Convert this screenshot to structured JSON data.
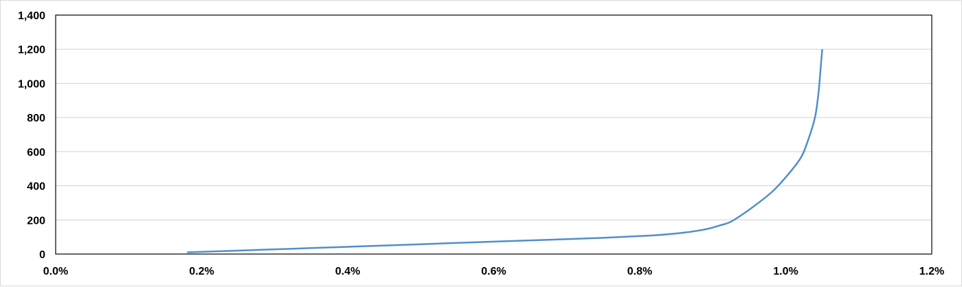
{
  "chart_data": {
    "type": "line",
    "title": "",
    "xlabel": "",
    "ylabel": "",
    "xlim": [
      0.0,
      1.2
    ],
    "ylim": [
      0,
      1400
    ],
    "x_ticks": [
      0.0,
      0.2,
      0.4,
      0.6,
      0.8,
      1.0,
      1.2
    ],
    "x_tick_labels": [
      "0.0%",
      "0.2%",
      "0.4%",
      "0.6%",
      "0.8%",
      "1.0%",
      "1.2%"
    ],
    "y_ticks": [
      0,
      200,
      400,
      600,
      800,
      1000,
      1200,
      1400
    ],
    "y_tick_labels": [
      "0",
      "200",
      "400",
      "600",
      "800",
      "1,000",
      "1,200",
      "1,400"
    ],
    "grid": "horizontal",
    "legend": "none",
    "series": [
      {
        "color": "#4f8fca",
        "x": [
          0.18,
          0.25,
          0.35,
          0.45,
          0.55,
          0.65,
          0.75,
          0.82,
          0.86,
          0.89,
          0.91,
          0.925,
          0.95,
          0.98,
          1.0,
          1.02,
          1.03,
          1.04,
          1.045,
          1.048,
          1.05
        ],
        "y": [
          10,
          20,
          35,
          50,
          65,
          80,
          95,
          110,
          125,
          145,
          168,
          190,
          260,
          360,
          450,
          560,
          660,
          800,
          950,
          1100,
          1200
        ]
      }
    ]
  }
}
